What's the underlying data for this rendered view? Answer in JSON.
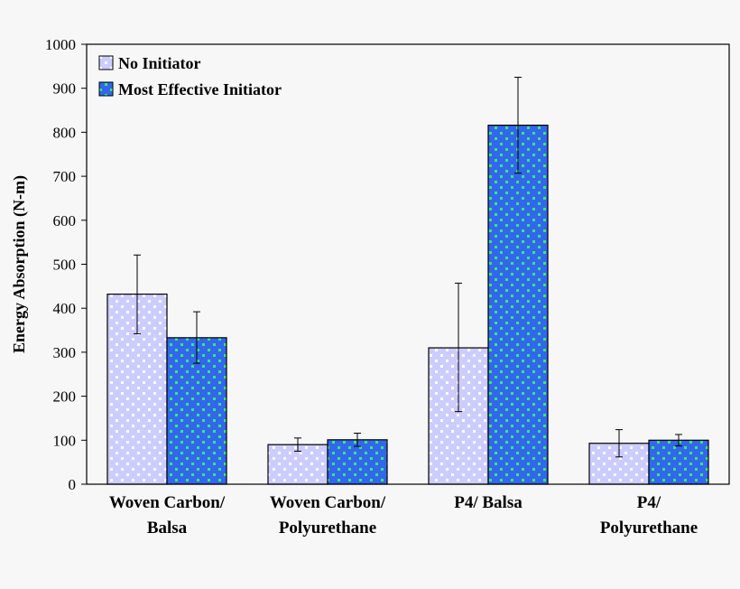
{
  "chart_data": {
    "type": "bar",
    "title": "",
    "xlabel": "",
    "ylabel": "Energy Absorption (N-m)",
    "ylim": [
      0,
      1000
    ],
    "yticks": [
      0,
      100,
      200,
      300,
      400,
      500,
      600,
      700,
      800,
      900,
      1000
    ],
    "grid": false,
    "legend_position": "top-left",
    "categories": [
      [
        "Woven Carbon/",
        "Balsa"
      ],
      [
        "Woven Carbon/",
        "Polyurethane"
      ],
      [
        "P4/ Balsa"
      ],
      [
        "P4/",
        "Polyurethane"
      ]
    ],
    "series": [
      {
        "name": "No Initiator",
        "values": [
          432,
          90,
          310,
          93
        ],
        "error_low": [
          342,
          75,
          165,
          62
        ],
        "error_high": [
          521,
          105,
          457,
          124
        ],
        "fill_color": "#ccccff",
        "dot_color": "#ffffff"
      },
      {
        "name": "Most Effective Initiator",
        "values": [
          333,
          101,
          816,
          100
        ],
        "error_low": [
          275,
          86,
          707,
          87
        ],
        "error_high": [
          392,
          116,
          925,
          113
        ],
        "fill_color": "#3366ee",
        "dot_color": "#33ee66"
      }
    ]
  }
}
